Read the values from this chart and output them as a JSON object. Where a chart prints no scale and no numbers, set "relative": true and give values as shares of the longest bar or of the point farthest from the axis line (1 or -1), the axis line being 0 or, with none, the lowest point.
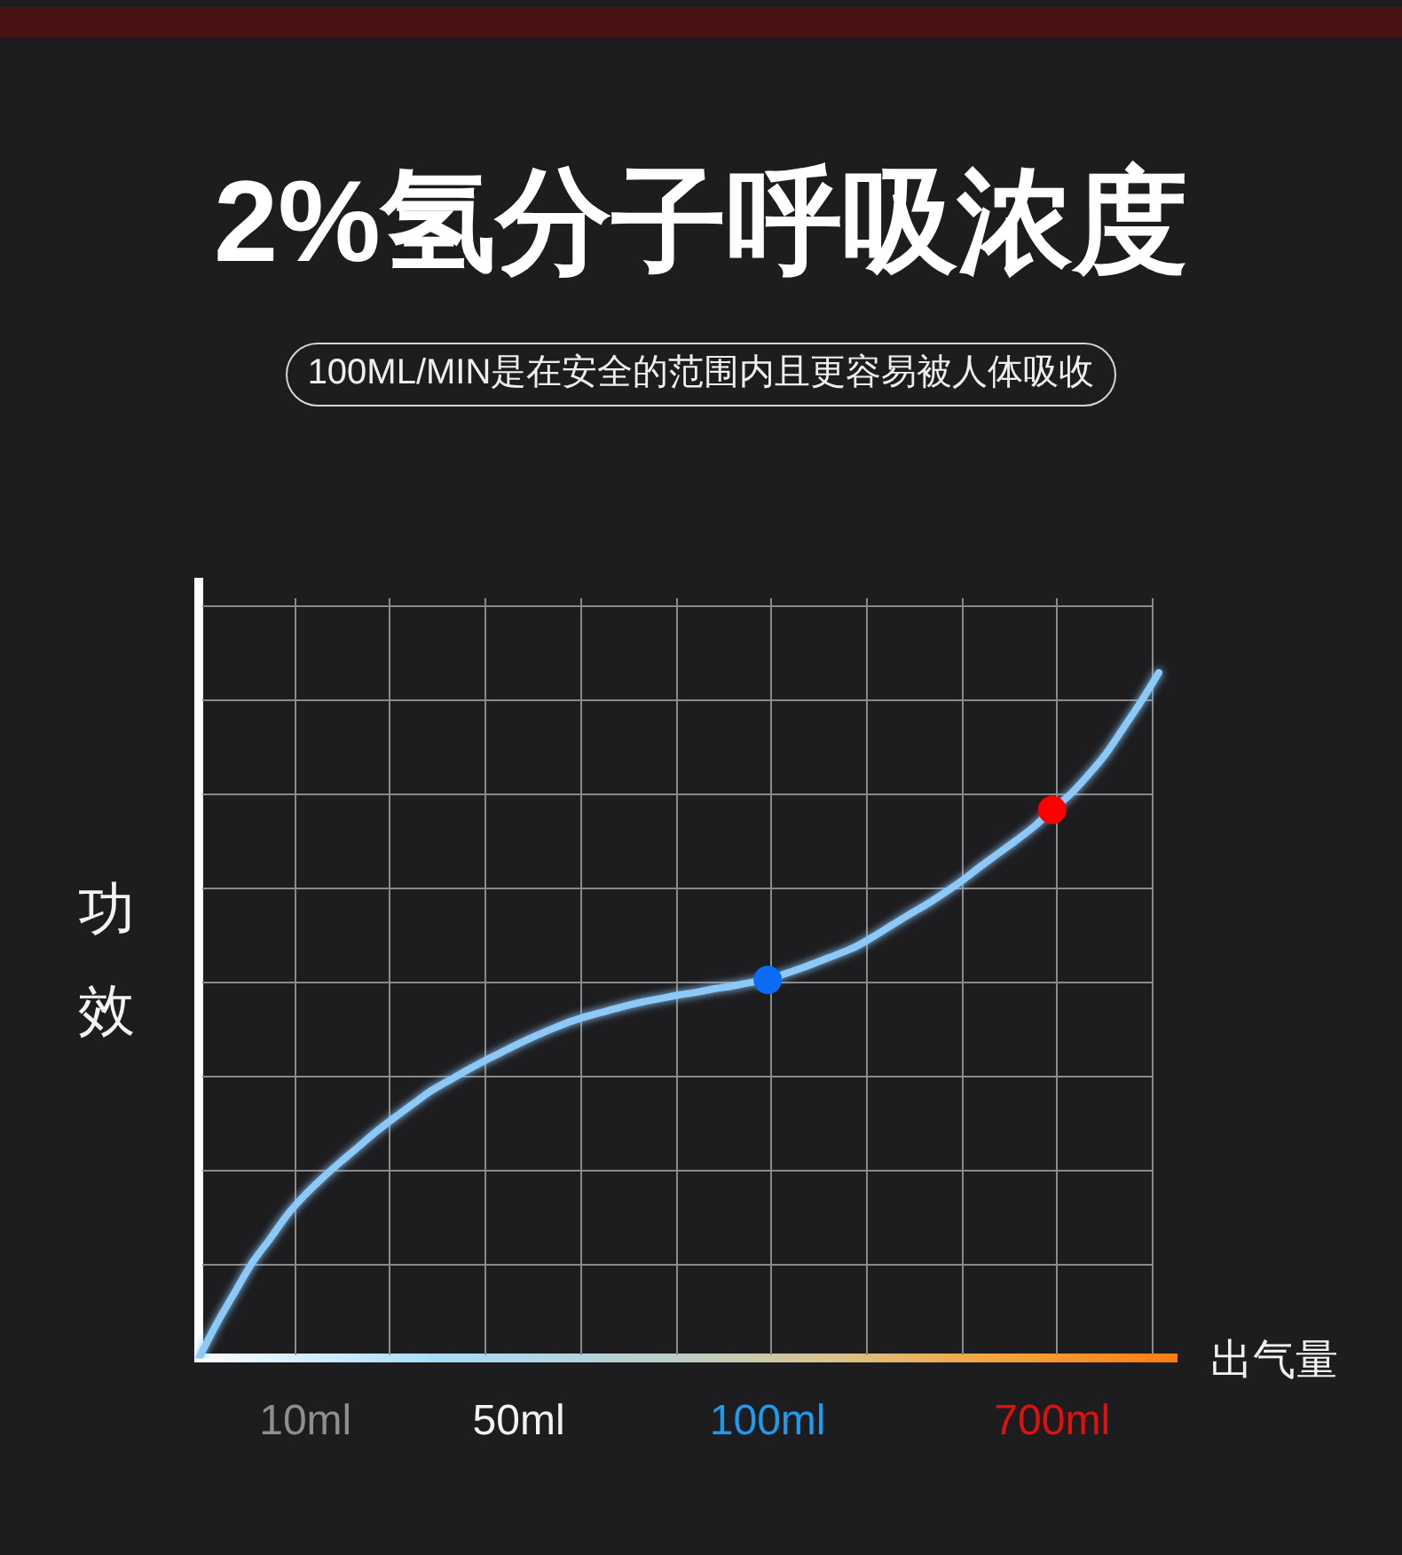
{
  "chart_data": {
    "type": "line",
    "title": "2%氢分子呼吸浓度",
    "subtitle": "100ML/MIN是在安全的范围内且更容易被人体吸收",
    "xlabel": "出气量",
    "ylabel": "功效",
    "relative": true,
    "grid": true,
    "categories": [
      null,
      null,
      null,
      null,
      null,
      null,
      "10ml",
      null,
      null,
      null,
      null,
      null,
      null,
      null,
      null,
      null,
      null,
      null,
      "50ml",
      null,
      null,
      null,
      null,
      null,
      null,
      null,
      null,
      null,
      null,
      null,
      null,
      null,
      "100ml",
      null,
      null,
      null,
      null,
      null,
      null,
      null,
      null,
      null,
      null,
      null,
      null,
      null,
      null,
      null,
      "700ml",
      null,
      null,
      null,
      null,
      null,
      null,
      null
    ],
    "series": [
      {
        "type": "line",
        "color": "#8cc8f8",
        "values": [
          0,
          0.05,
          0.095,
          0.139,
          0.174,
          0.21,
          0.239,
          0.264,
          0.287,
          0.309,
          0.331,
          0.351,
          0.37,
          0.389,
          0.404,
          0.419,
          0.433,
          0.446,
          0.459,
          0.471,
          0.482,
          0.492,
          0.5,
          0.507,
          0.514,
          0.52,
          0.525,
          0.53,
          0.534,
          0.539,
          0.543,
          0.548,
          0.552,
          0.561,
          0.57,
          0.58,
          0.59,
          0.601,
          0.616,
          0.632,
          0.648,
          0.663,
          0.68,
          0.698,
          0.718,
          0.737,
          0.756,
          0.776,
          0.8,
          0.822,
          0.85,
          0.881,
          0.919,
          0.958,
          1,
          null
        ]
      },
      {
        "type": "scatter",
        "color": "#0a6cf5",
        "marker": "circle",
        "values": [
          null,
          null,
          null,
          null,
          null,
          null,
          null,
          null,
          null,
          null,
          null,
          null,
          null,
          null,
          null,
          null,
          null,
          null,
          null,
          null,
          null,
          null,
          null,
          null,
          null,
          null,
          null,
          null,
          null,
          null,
          null,
          null,
          0.552,
          null,
          null,
          null,
          null,
          null,
          null,
          null,
          null,
          null,
          null,
          null,
          null,
          null,
          null,
          null,
          null,
          null,
          null,
          null,
          null,
          null,
          null,
          null
        ]
      },
      {
        "type": "scatter",
        "color": "#ff0000",
        "marker": "circle",
        "values": [
          null,
          null,
          null,
          null,
          null,
          null,
          null,
          null,
          null,
          null,
          null,
          null,
          null,
          null,
          null,
          null,
          null,
          null,
          null,
          null,
          null,
          null,
          null,
          null,
          null,
          null,
          null,
          null,
          null,
          null,
          null,
          null,
          null,
          null,
          null,
          null,
          null,
          null,
          null,
          null,
          null,
          null,
          null,
          null,
          null,
          null,
          null,
          null,
          0.8,
          null,
          null,
          null,
          null,
          null,
          null,
          null
        ]
      }
    ]
  }
}
